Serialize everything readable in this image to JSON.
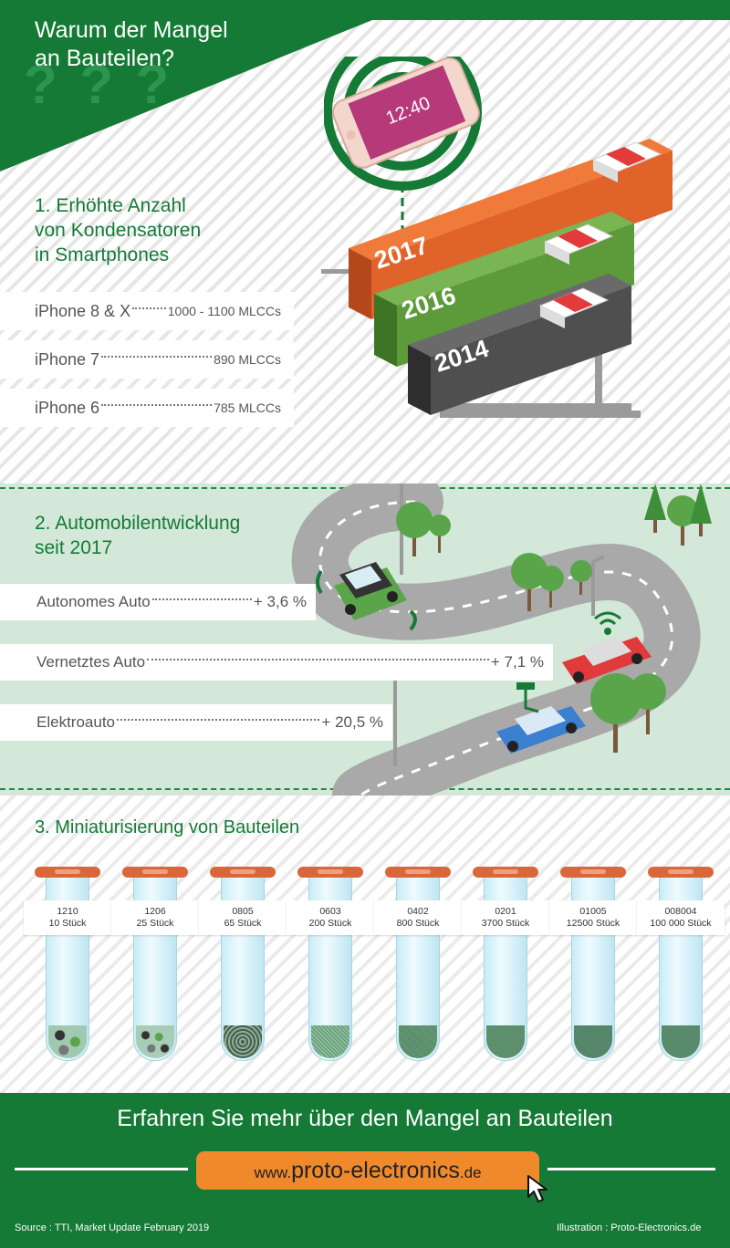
{
  "section1": {
    "title_line1": "Warum der Mangel",
    "title_line2": "an Bauteilen?",
    "heading_line1": "1. Erhöhte Anzahl",
    "heading_line2": "von Kondensatoren",
    "heading_line3": "in Smartphones",
    "phone_time": "12:40",
    "years": [
      "2017",
      "2016",
      "2014"
    ],
    "rows": [
      {
        "label": "iPhone 8 & X",
        "value": "1000 - 1100 MLCCs"
      },
      {
        "label": "iPhone 7",
        "value": "890  MLCCs"
      },
      {
        "label": "iPhone 6",
        "value": "785  MLCCs"
      }
    ]
  },
  "section2": {
    "heading_line1": "2. Automobilentwicklung",
    "heading_line2": "seit 2017",
    "rows": [
      {
        "label": "Autonomes Auto",
        "value": "+ 3,6 %"
      },
      {
        "label": "Vernetztes Auto",
        "value": "+ 7,1 %"
      },
      {
        "label": "Elektroauto",
        "value": "+ 20,5 %"
      }
    ]
  },
  "section3": {
    "heading": "3. Miniaturisierung von Bauteilen",
    "tubes": [
      {
        "size": "1210",
        "count": "10 Stück"
      },
      {
        "size": "1206",
        "count": "25 Stück"
      },
      {
        "size": "0805",
        "count": "65 Stück"
      },
      {
        "size": "0603",
        "count": "200 Stück"
      },
      {
        "size": "0402",
        "count": "800 Stück"
      },
      {
        "size": "0201",
        "count": "3700 Stück"
      },
      {
        "size": "01005",
        "count": "12500 Stück"
      },
      {
        "size": "008004",
        "count": "100 000 Stück"
      }
    ]
  },
  "footer": {
    "cta": "Erfahren Sie mehr über den Mangel an Bauteilen",
    "url_prefix": "www.",
    "url_main": "proto-electronics",
    "url_suffix": ".de",
    "source": "Source : TTI, Market Update February 2019",
    "illustration": "Illustration : Proto-Electronics.de"
  },
  "colors": {
    "brand_green": "#147a35",
    "orange": "#e0642a",
    "cta_orange": "#f0892b",
    "chip_2016": "#5c9a3a",
    "chip_2014": "#4f4f4f"
  }
}
